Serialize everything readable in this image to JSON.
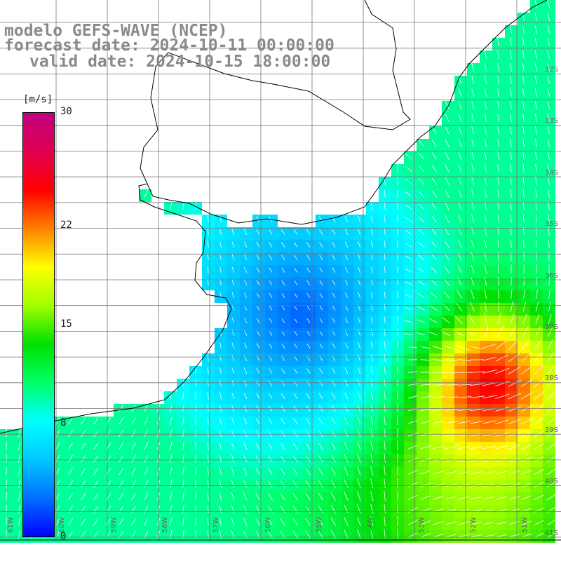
{
  "title": {
    "line1": "modelo GEFS-WAVE (NCEP)",
    "line2": "forecast date: 2024-10-11 00:00:00",
    "line3": "valid date: 2024-10-15 18:00:00"
  },
  "colorbar": {
    "unit": "[m/s]",
    "min": 0,
    "max": 30,
    "ticks": [
      "30",
      "22",
      "15",
      "8",
      "0"
    ],
    "tick_values": [
      30,
      22,
      15,
      8,
      0
    ],
    "colors": [
      "#0000ff",
      "#0070ff",
      "#00c8ff",
      "#00ffff",
      "#00ff66",
      "#00e000",
      "#a0ff00",
      "#ffff00",
      "#ff8000",
      "#ff0000",
      "#e00050",
      "#c00080"
    ]
  },
  "lat_labels": [
    "32S",
    "33S",
    "34S",
    "35S",
    "36S",
    "37S",
    "38S",
    "39S",
    "40S",
    "41S"
  ],
  "lon_labels": [
    "61W",
    "60W",
    "59W",
    "58W",
    "57W",
    "56W",
    "55W",
    "54W",
    "53W",
    "52W",
    "51W"
  ],
  "colors": {
    "land": "#ffffff",
    "coast": "#000000",
    "grid": "#777777",
    "title": "#8a8a8a"
  }
}
